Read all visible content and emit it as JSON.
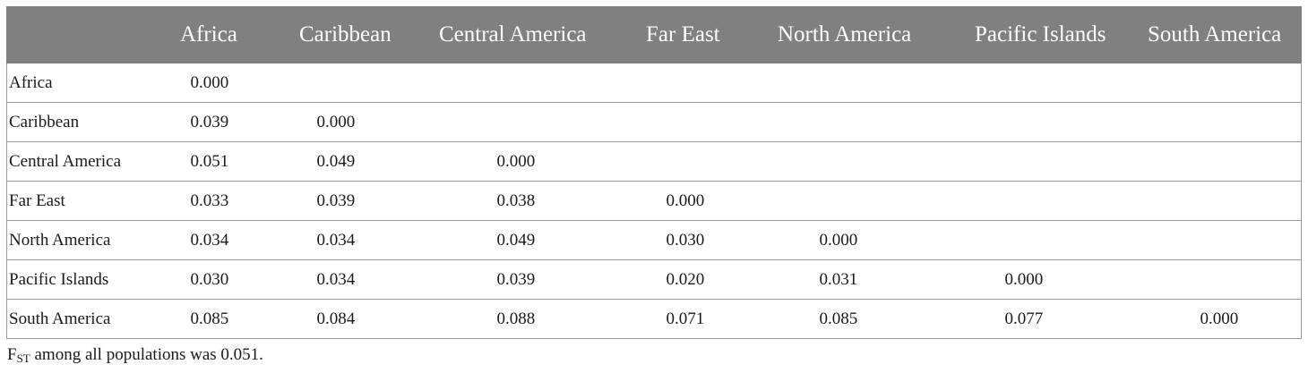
{
  "table": {
    "columns": [
      "",
      "Africa",
      "Caribbean",
      "Central America",
      "Far East",
      "North America",
      "Pacific Islands",
      "South America"
    ],
    "rows": [
      {
        "label": "Africa",
        "values": [
          "0.000",
          "",
          "",
          "",
          "",
          "",
          ""
        ]
      },
      {
        "label": "Caribbean",
        "values": [
          "0.039",
          "0.000",
          "",
          "",
          "",
          "",
          ""
        ]
      },
      {
        "label": "Central America",
        "values": [
          "0.051",
          "0.049",
          "0.000",
          "",
          "",
          "",
          ""
        ]
      },
      {
        "label": "Far East",
        "values": [
          "0.033",
          "0.039",
          "0.038",
          "0.000",
          "",
          "",
          ""
        ]
      },
      {
        "label": "North America",
        "values": [
          "0.034",
          "0.034",
          "0.049",
          "0.030",
          "0.000",
          "",
          ""
        ]
      },
      {
        "label": "Pacific Islands",
        "values": [
          "0.030",
          "0.034",
          "0.039",
          "0.020",
          "0.031",
          "0.000",
          ""
        ]
      },
      {
        "label": "South America",
        "values": [
          "0.085",
          "0.084",
          "0.088",
          "0.071",
          "0.085",
          "0.077",
          "0.000"
        ]
      }
    ]
  },
  "footnote": {
    "symbol": "F",
    "subscript": "ST",
    "text": " among all populations was 0.051."
  }
}
